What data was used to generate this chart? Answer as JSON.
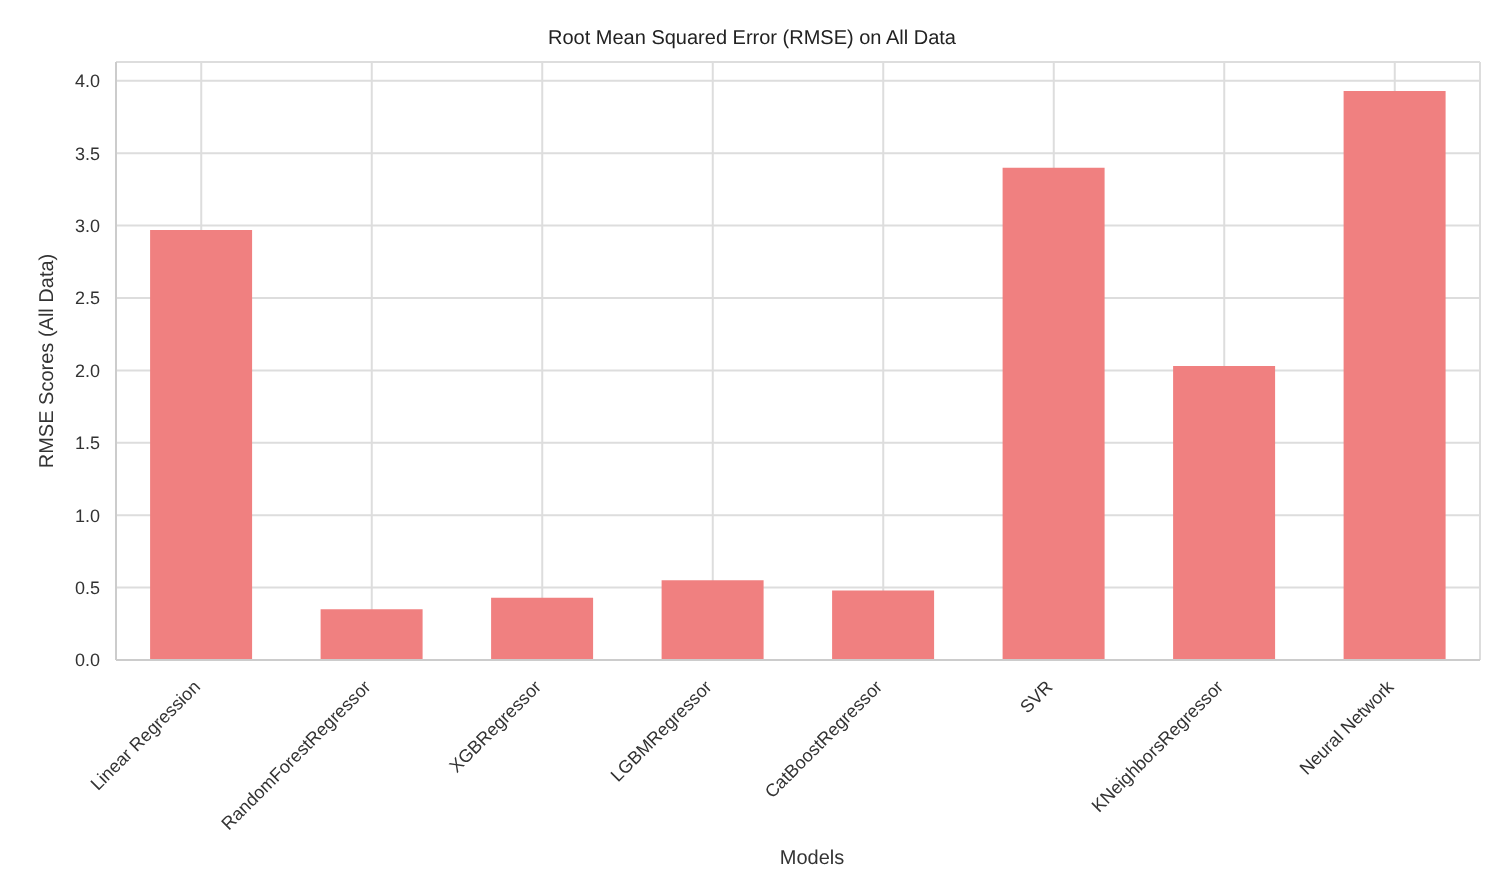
{
  "chart_data": {
    "type": "bar",
    "title": "Root Mean Squared Error (RMSE) on All Data",
    "xlabel": "Models",
    "ylabel": "RMSE Scores (All Data)",
    "categories": [
      "Linear Regression",
      "RandomForestRegressor",
      "XGBRegressor",
      "LGBMRegressor",
      "CatBoostRegressor",
      "SVR",
      "KNeighborsRegressor",
      "Neural Network"
    ],
    "values": [
      2.97,
      0.35,
      0.43,
      0.55,
      0.48,
      3.4,
      2.03,
      3.93
    ],
    "color": "#f08080",
    "ylim": [
      0,
      4.13
    ],
    "yticks": [
      {
        "value": 0,
        "label": "0.0"
      },
      0.5,
      {
        "value": 1,
        "label": "1.0"
      },
      1.5,
      {
        "value": 2,
        "label": "2.0"
      },
      2.5,
      {
        "value": 3,
        "label": "3.0"
      },
      3.5,
      {
        "value": 4,
        "label": "4.0"
      }
    ],
    "grid": true
  }
}
